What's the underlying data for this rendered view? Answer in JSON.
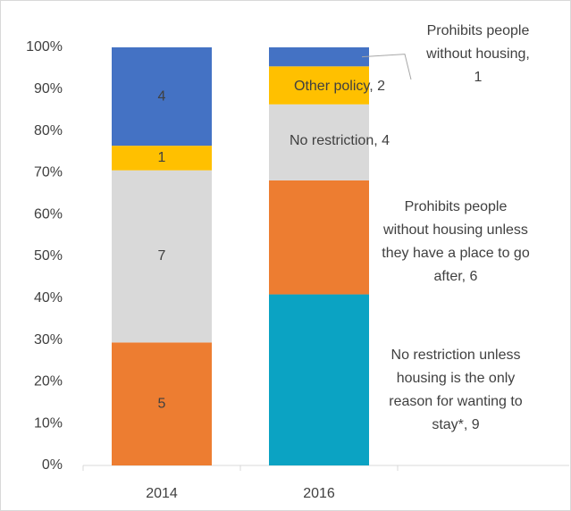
{
  "chart_data": {
    "type": "bar",
    "stacking": "percent",
    "categories": [
      "2014",
      "2016"
    ],
    "series": [
      {
        "color": "#0ba3c3",
        "values": [
          null,
          9
        ],
        "value_labels": [
          null,
          [
            "No restriction unless",
            "housing is the only",
            "reason for wanting to",
            "stay*, 9"
          ]
        ]
      },
      {
        "color": "#ed7d31",
        "values": [
          5,
          6
        ],
        "value_labels": [
          null,
          [
            "Prohibits people",
            "without housing unless",
            "they have a place to go",
            "after, 6"
          ]
        ]
      },
      {
        "color": "#d9d9d9",
        "values": [
          7,
          4
        ],
        "value_labels": [
          null,
          [
            "No restriction, 4"
          ]
        ]
      },
      {
        "color": "#ffc000",
        "values": [
          1,
          2
        ],
        "value_labels": [
          null,
          [
            "Other policy, 2"
          ]
        ]
      },
      {
        "color": "#4472c4",
        "values": [
          4,
          1
        ],
        "value_labels": [
          null,
          [
            "Prohibits people",
            "without housing,",
            "1"
          ]
        ]
      }
    ],
    "ylim": [
      0,
      100
    ],
    "yticks": [
      {
        "value": 0,
        "label": "0%"
      },
      {
        "value": 10,
        "label": "10%"
      },
      {
        "value": 20,
        "label": "20%"
      },
      {
        "value": 30,
        "label": "30%"
      },
      {
        "value": 40,
        "label": "40%"
      },
      {
        "value": 50,
        "label": "50%"
      },
      {
        "value": 60,
        "label": "60%"
      },
      {
        "value": 70,
        "label": "70%"
      },
      {
        "value": 80,
        "label": "80%"
      },
      {
        "value": 90,
        "label": "90%"
      },
      {
        "value": 100,
        "label": "100%"
      }
    ],
    "grid": false
  }
}
